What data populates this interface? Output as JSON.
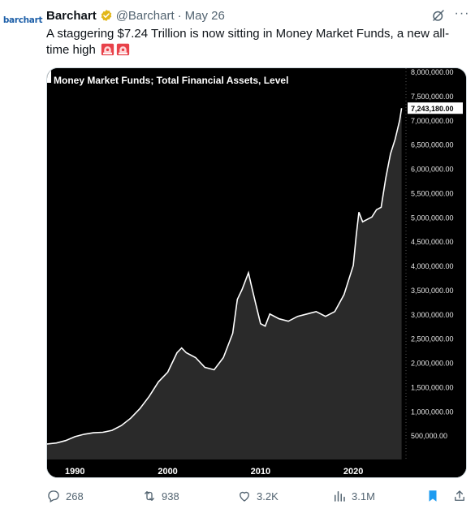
{
  "tweet": {
    "author_name": "Barchart",
    "handle": "@Barchart",
    "separator": "·",
    "date": "May 26",
    "avatar_text": "barchart",
    "text": "A staggering $7.24 Trillion is now sitting in Money Market Funds, a new all-time high",
    "emoji_icons": [
      "rotating-light-icon",
      "rotating-light-icon"
    ],
    "more_label": "···"
  },
  "actions": {
    "replies": "268",
    "reposts": "938",
    "likes": "3.2K",
    "views": "3.1M"
  },
  "colors": {
    "brand_blue": "#1d9bf0",
    "avatar_blue": "#1d5fa8",
    "verified_gold": "#e2b719",
    "muted": "#536471",
    "chart_bg": "#000000",
    "chart_fill": "#2a2a2a",
    "chart_line": "#ffffff"
  },
  "chart_data": {
    "type": "area",
    "title": "Money Market Funds; Total Financial Assets, Level",
    "x_ticks": [
      "1990",
      "2000",
      "2010",
      "2020"
    ],
    "y_ticks": [
      "500,000.00",
      "1,000,000.00",
      "1,500,000.00",
      "2,000,000.00",
      "2,500,000.00",
      "3,000,000.00",
      "3,500,000.00",
      "4,000,000.00",
      "4,500,000.00",
      "5,000,000.00",
      "5,500,000.00",
      "6,000,000.00",
      "6,500,000.00",
      "7,000,000.00",
      "7,500,000.00",
      "8,000,000.00"
    ],
    "ylim": [
      0,
      8000000
    ],
    "xlim": [
      1987,
      2025.5
    ],
    "last_value_label": "7,243,180.00",
    "grid": false,
    "x": [
      1987,
      1988,
      1989,
      1990,
      1991,
      1992,
      1993,
      1994,
      1995,
      1996,
      1997,
      1998,
      1999,
      2000,
      2001,
      2001.5,
      2002,
      2003,
      2004,
      2005,
      2006,
      2007,
      2007.5,
      2008,
      2008.7,
      2009,
      2009.5,
      2010,
      2010.5,
      2011,
      2012,
      2013,
      2014,
      2015,
      2016,
      2017,
      2018,
      2019,
      2019.5,
      2020,
      2020.3,
      2020.6,
      2021,
      2022,
      2022.5,
      2023,
      2023.5,
      2024,
      2024.5,
      2025,
      2025.2
    ],
    "y": [
      320000,
      340000,
      390000,
      470000,
      520000,
      550000,
      560000,
      600000,
      700000,
      850000,
      1050000,
      1300000,
      1600000,
      1800000,
      2200000,
      2300000,
      2200000,
      2100000,
      1900000,
      1850000,
      2100000,
      2600000,
      3300000,
      3500000,
      3850000,
      3600000,
      3200000,
      2800000,
      2750000,
      3000000,
      2900000,
      2850000,
      2950000,
      3000000,
      3050000,
      2950000,
      3050000,
      3400000,
      3700000,
      4000000,
      4600000,
      5100000,
      4900000,
      5000000,
      5150000,
      5200000,
      5800000,
      6300000,
      6600000,
      7000000,
      7243180
    ]
  }
}
